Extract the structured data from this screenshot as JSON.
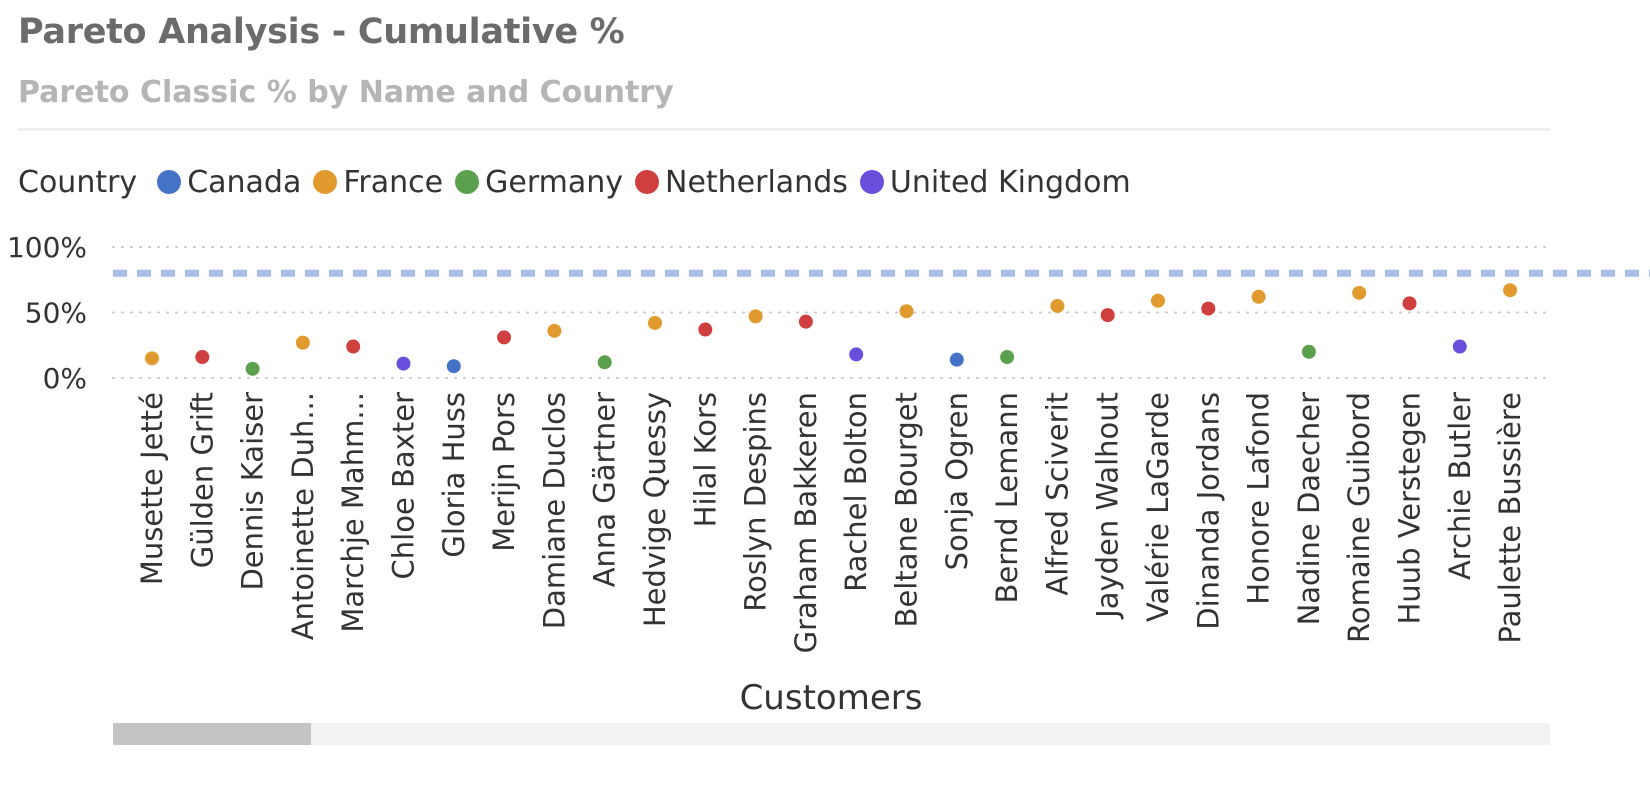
{
  "header": {
    "title": "Pareto Analysis - Cumulative %",
    "subtitle": "Pareto Classic % by Name and Country"
  },
  "legend": {
    "title": "Country",
    "items": [
      {
        "label": "Canada",
        "color": "#4472C4"
      },
      {
        "label": "France",
        "color": "#E19A2E"
      },
      {
        "label": "Germany",
        "color": "#5BA04C"
      },
      {
        "label": "Netherlands",
        "color": "#CF3F3F"
      },
      {
        "label": "United Kingdom",
        "color": "#6A4FDC"
      }
    ]
  },
  "chart_data": {
    "type": "scatter",
    "title": "Pareto Analysis - Cumulative %",
    "subtitle": "Pareto Classic % by Name and Country",
    "xlabel": "Customers",
    "ylabel": "",
    "ylim": [
      0,
      100
    ],
    "y_ticks": [
      "0%",
      "50%",
      "100%"
    ],
    "reference_line": {
      "value": 80,
      "style": "dashed",
      "color": "#A9BDE8"
    },
    "grid": true,
    "legend_position": "top-left",
    "categories": [
      "Musette Jetté",
      "Gülden Grift",
      "Dennis Kaiser",
      "Antoinette Duh...",
      "Marchje Mahm...",
      "Chloe Baxter",
      "Gloria Huss",
      "Merijn Pors",
      "Damiane Duclos",
      "Anna Gärtner",
      "Hedvige Quessy",
      "Hilal Kors",
      "Roslyn Despins",
      "Graham Bakkeren",
      "Rachel Bolton",
      "Beltane Bourget",
      "Sonja Ogren",
      "Bernd Lemann",
      "Alfred Sciverit",
      "Jayden Walhout",
      "Valérie LaGarde",
      "Dinanda Jordans",
      "Honore Lafond",
      "Nadine Daecher",
      "Romaine Guibord",
      "Huub Verstegen",
      "Archie Butler",
      "Paulette Bussière"
    ],
    "country": [
      "France",
      "Netherlands",
      "Germany",
      "France",
      "Netherlands",
      "United Kingdom",
      "Canada",
      "Netherlands",
      "France",
      "Germany",
      "France",
      "Netherlands",
      "France",
      "Netherlands",
      "United Kingdom",
      "France",
      "Canada",
      "Germany",
      "France",
      "Netherlands",
      "France",
      "Netherlands",
      "France",
      "Germany",
      "France",
      "Netherlands",
      "United Kingdom",
      "France"
    ],
    "values": [
      15,
      16,
      7,
      27,
      24,
      11,
      9,
      31,
      36,
      12,
      42,
      37,
      47,
      43,
      18,
      51,
      14,
      16,
      55,
      48,
      59,
      53,
      62,
      20,
      65,
      57,
      24,
      67
    ]
  },
  "scrollbar": {
    "position": 0.0,
    "visible_fraction": 0.14
  }
}
